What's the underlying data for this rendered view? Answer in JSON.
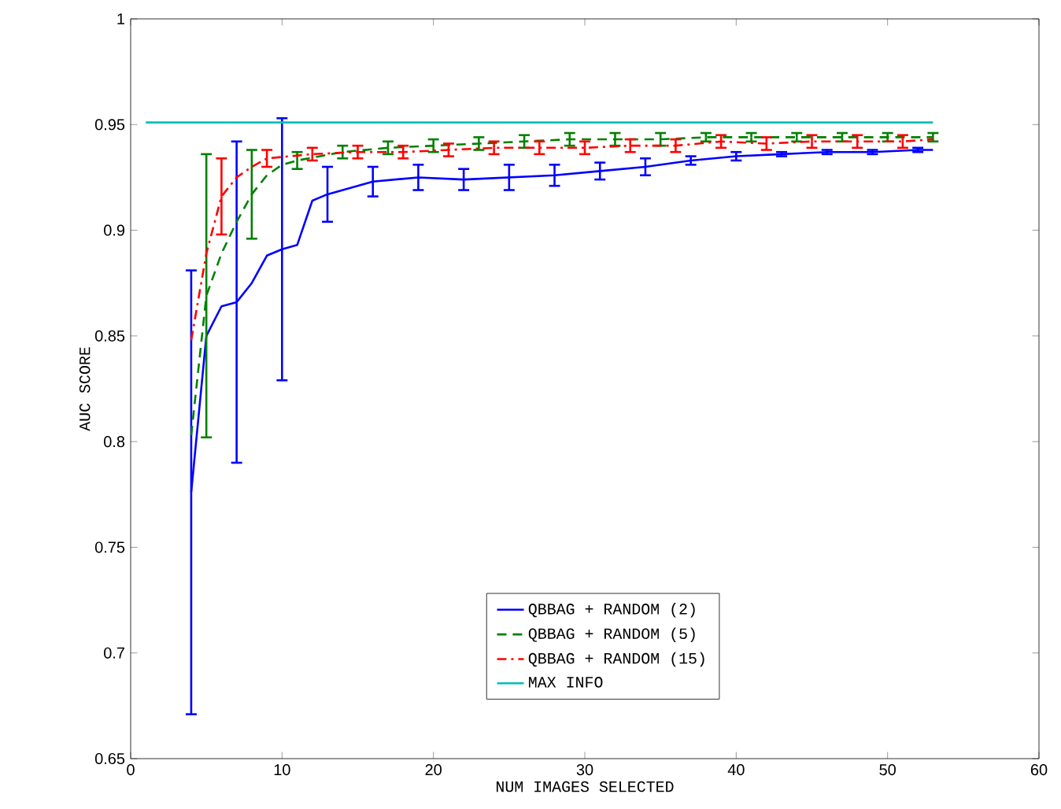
{
  "chart_data": {
    "type": "line",
    "xlabel": "NUM IMAGES SELECTED",
    "ylabel": "AUC SCORE",
    "xlim": [
      0,
      60
    ],
    "ylim": [
      0.65,
      1
    ],
    "xticks": [
      0,
      10,
      20,
      30,
      40,
      50,
      60
    ],
    "yticks": [
      0.65,
      0.7,
      0.75,
      0.8,
      0.85,
      0.9,
      0.95,
      1
    ],
    "legend": "bottom",
    "grid": false,
    "marker": "none",
    "series": [
      {
        "name": "QBBAG + RANDOM (2)",
        "color": "#0000ff",
        "line_style": "solid",
        "x": [
          4,
          5,
          6,
          7,
          8,
          9,
          10,
          11,
          12,
          13,
          16,
          19,
          22,
          25,
          28,
          31,
          34,
          37,
          40,
          43,
          46,
          49,
          52,
          53
        ],
        "values": [
          0.776,
          0.85,
          0.864,
          0.866,
          0.875,
          0.888,
          0.891,
          0.893,
          0.914,
          0.917,
          0.923,
          0.925,
          0.924,
          0.925,
          0.926,
          0.928,
          0.93,
          0.933,
          0.935,
          0.936,
          0.937,
          0.937,
          0.938,
          0.938
        ],
        "errors": [
          0.105,
          null,
          null,
          0.076,
          null,
          null,
          0.062,
          null,
          null,
          0.013,
          0.007,
          0.006,
          0.005,
          0.006,
          0.005,
          0.004,
          0.004,
          0.002,
          0.002,
          0.001,
          0.001,
          0.001,
          0.001,
          null
        ]
      },
      {
        "name": "QBBAG + RANDOM (5)",
        "color": "#008000",
        "line_style": "dashed",
        "x": [
          4,
          5,
          6,
          7,
          8,
          9,
          10,
          11,
          14,
          17,
          20,
          23,
          26,
          29,
          32,
          35,
          38,
          41,
          44,
          47,
          50,
          53
        ],
        "values": [
          0.803,
          0.869,
          0.889,
          0.904,
          0.917,
          0.926,
          0.931,
          0.933,
          0.937,
          0.939,
          0.94,
          0.941,
          0.942,
          0.943,
          0.943,
          0.943,
          0.944,
          0.944,
          0.944,
          0.944,
          0.944,
          0.944
        ],
        "errors": [
          null,
          0.067,
          null,
          null,
          0.021,
          null,
          null,
          0.004,
          0.003,
          0.003,
          0.003,
          0.003,
          0.003,
          0.003,
          0.003,
          0.003,
          0.002,
          0.002,
          0.002,
          0.002,
          0.002,
          0.002
        ]
      },
      {
        "name": "QBBAG + RANDOM (15)",
        "color": "#ff0000",
        "line_style": "dashdot",
        "x": [
          4,
          5,
          6,
          7,
          8,
          9,
          12,
          15,
          18,
          21,
          24,
          27,
          30,
          33,
          36,
          39,
          42,
          45,
          48,
          51,
          53
        ],
        "values": [
          0.848,
          0.889,
          0.916,
          0.925,
          0.93,
          0.934,
          0.936,
          0.937,
          0.937,
          0.938,
          0.939,
          0.939,
          0.939,
          0.94,
          0.94,
          0.942,
          0.941,
          0.942,
          0.942,
          0.942,
          0.943
        ],
        "errors": [
          null,
          null,
          0.018,
          null,
          null,
          0.004,
          0.003,
          0.003,
          0.003,
          0.003,
          0.003,
          0.003,
          0.003,
          0.003,
          0.003,
          0.003,
          0.003,
          0.003,
          0.003,
          0.003,
          null
        ]
      },
      {
        "name": "MAX INFO",
        "color": "#00bfbf",
        "line_style": "solid",
        "x": [
          1,
          53
        ],
        "values": [
          0.951,
          0.951
        ]
      }
    ]
  }
}
